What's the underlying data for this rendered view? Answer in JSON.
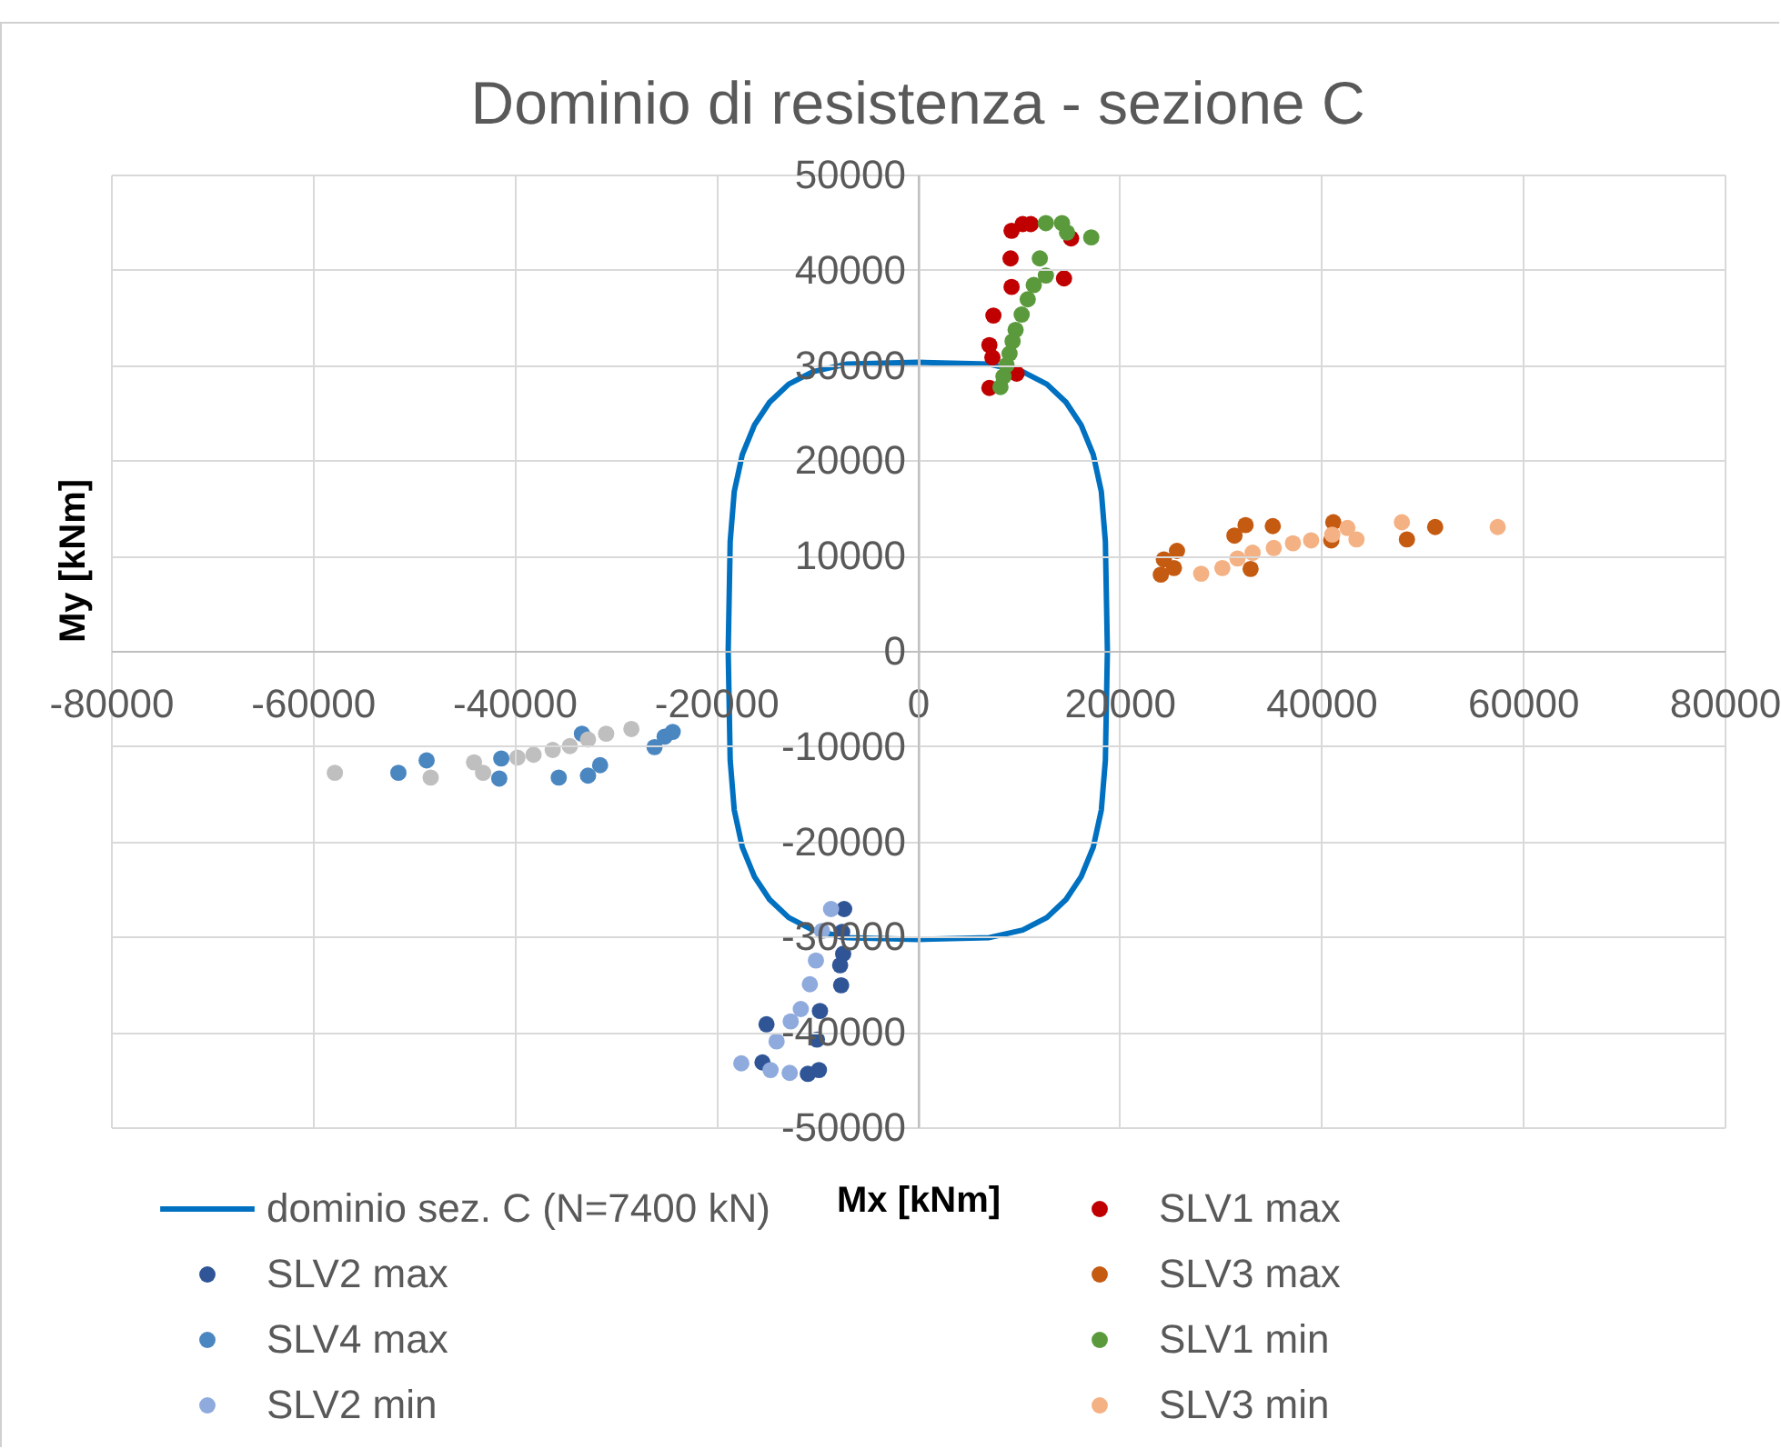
{
  "chart_data": {
    "type": "scatter",
    "title": "Dominio di resistenza - sezione C",
    "xlabel": "Mx [kNm]",
    "ylabel": "My [kNm]",
    "xlim": [
      -80000,
      80000
    ],
    "xticks": [
      -80000,
      -60000,
      -40000,
      -20000,
      0,
      20000,
      40000,
      60000,
      80000
    ],
    "ylim": [
      -50000,
      50000
    ],
    "yticks": [
      -50000,
      -40000,
      -30000,
      -20000,
      -10000,
      0,
      10000,
      20000,
      30000,
      40000,
      50000
    ],
    "grid": true,
    "legend": "bottom",
    "marker": "circle",
    "series": [
      {
        "name": "dominio sez. C (N=7400 kN)",
        "type": "line",
        "marker": "none",
        "color": "#0070c0",
        "x": [
          18800,
          18600,
          18200,
          17400,
          16200,
          14700,
          12800,
          10400,
          7100,
          0,
          -7100,
          -10400,
          -12800,
          -14700,
          -16200,
          -17400,
          -18200,
          -18600,
          -18800,
          -18600,
          -18200,
          -17400,
          -16200,
          -14700,
          -12800,
          -10400,
          -7100,
          0,
          7100,
          10400,
          12800,
          14700,
          16200,
          17400,
          18200,
          18600,
          18800,
          18600
        ],
        "values": [
          0,
          11500,
          16700,
          20600,
          23700,
          26100,
          28000,
          29300,
          30100,
          30300,
          30100,
          29300,
          28000,
          26100,
          23700,
          20600,
          16700,
          11500,
          0,
          -11500,
          -16700,
          -20600,
          -23700,
          -26100,
          -28000,
          -29300,
          -30100,
          -30300,
          -30100,
          -29300,
          -28000,
          -26100,
          -23700,
          -20600,
          -16700,
          -11500,
          0,
          11500
        ]
      },
      {
        "name": "SLV1 max",
        "color": "#c00000",
        "x": [
          9300,
          10400,
          11200,
          15200,
          9200,
          14500,
          9300,
          7500,
          7100,
          7400,
          9800,
          7100
        ],
        "values": [
          44100,
          44800,
          44800,
          43300,
          41200,
          39100,
          38200,
          35200,
          32100,
          30800,
          29100,
          27600
        ]
      },
      {
        "name": "SLV2 max",
        "color": "#2f5597",
        "x": [
          -7300,
          -7400,
          -7700,
          -7600,
          -9700,
          -15000,
          -10000,
          -15400,
          -9800,
          -10900,
          -7500
        ],
        "values": [
          -27100,
          -31800,
          -33000,
          -35100,
          -37800,
          -39200,
          -40800,
          -43200,
          -44000,
          -44400,
          -29500
        ]
      },
      {
        "name": "SLV3 max",
        "color": "#c55a11",
        "x": [
          24100,
          24400,
          25700,
          25400,
          31400,
          32500,
          35200,
          33000,
          41200,
          41000,
          48500,
          51300
        ],
        "values": [
          8000,
          9600,
          10500,
          8700,
          12100,
          13200,
          13100,
          8600,
          13500,
          11600,
          11700,
          13000
        ]
      },
      {
        "name": "SLV4 max",
        "color": "#4a86c0",
        "x": [
          -51500,
          -48700,
          -41500,
          -41300,
          -35600,
          -33300,
          -32700,
          -31500,
          -26100,
          -25100,
          -24300
        ],
        "values": [
          -12800,
          -11500,
          -13400,
          -11300,
          -13300,
          -8700,
          -13100,
          -12000,
          -10100,
          -9000,
          -8500
        ]
      },
      {
        "name": "SLV1 min",
        "color": "#5a9a3c",
        "x": [
          12700,
          14300,
          14800,
          17200,
          12100,
          12700,
          11500,
          10900,
          10300,
          9700,
          9400,
          9100,
          8800,
          8500,
          8200
        ],
        "values": [
          44900,
          44900,
          43900,
          43400,
          41200,
          39400,
          38400,
          36900,
          35300,
          33700,
          32500,
          31200,
          30000,
          28800,
          27700
        ]
      },
      {
        "name": "SLV2 min",
        "color": "#8faadc",
        "x": [
          -8600,
          -9500,
          -10100,
          -10700,
          -11600,
          -12600,
          -14000,
          -17500,
          -14600,
          -12700
        ],
        "values": [
          -27100,
          -29400,
          -32500,
          -35000,
          -37600,
          -38900,
          -41000,
          -43300,
          -44000,
          -44300
        ]
      },
      {
        "name": "SLV3 min",
        "color": "#f4b183",
        "x": [
          28100,
          30200,
          31700,
          33200,
          35300,
          37200,
          39000,
          41100,
          42600,
          43500,
          48000,
          57500
        ],
        "values": [
          8100,
          8700,
          9700,
          10300,
          10800,
          11300,
          11600,
          12200,
          12900,
          11700,
          13500,
          13000
        ]
      },
      {
        "color": "#bfbfbf",
        "x": [
          -57800,
          -48300,
          -44000,
          -43100,
          -39700,
          -38100,
          -36200,
          -34500,
          -32700,
          -30900,
          -28400
        ],
        "values": [
          -12800,
          -13300,
          -11700,
          -12800,
          -11200,
          -10900,
          -10400,
          -10000,
          -9300,
          -8700,
          -8200
        ]
      }
    ]
  }
}
